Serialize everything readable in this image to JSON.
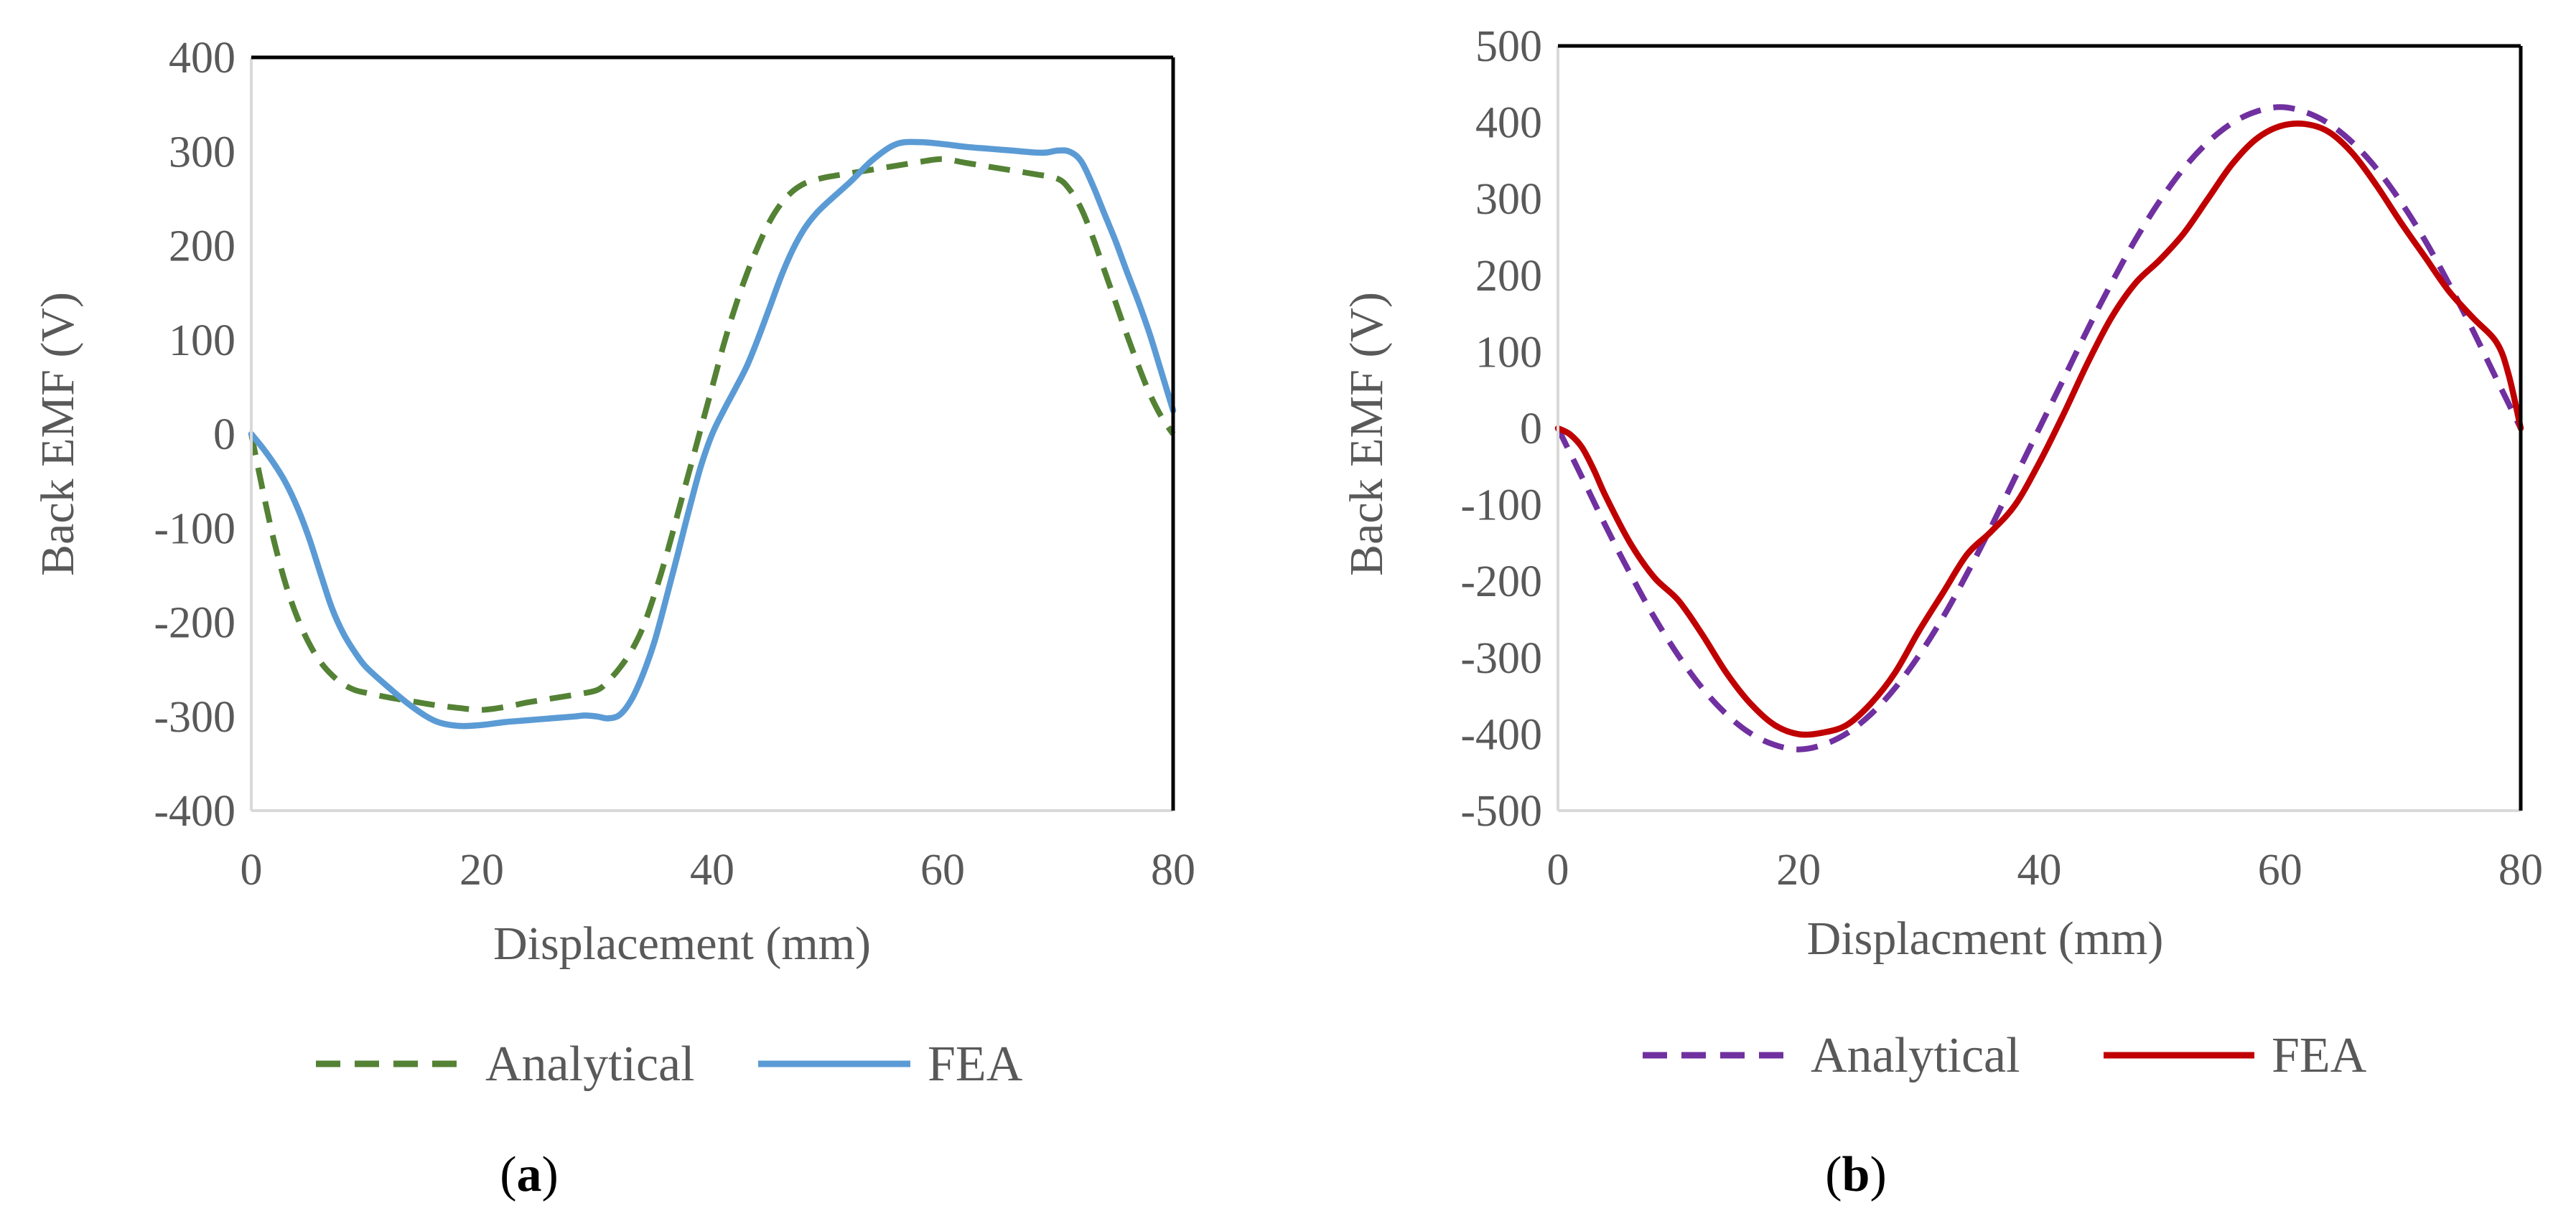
{
  "colors": {
    "a_analytical": "#548235",
    "a_fea": "#5B9BD5",
    "b_analytical": "#7030A0",
    "b_fea": "#C00000",
    "axis": "#000000",
    "text": "#595959"
  },
  "chart_data": [
    {
      "type": "line",
      "panel": "a",
      "panel_label": "a",
      "title": "",
      "xlabel": "Displacement (mm)",
      "ylabel": "Back EMF (V)",
      "xlim": [
        0,
        80
      ],
      "ylim": [
        -400,
        400
      ],
      "xticks": [
        "0",
        "20",
        "40",
        "60",
        "80"
      ],
      "xtick_values": [
        0,
        20,
        40,
        60,
        80
      ],
      "yticks": [
        "400",
        "300",
        "200",
        "100",
        "0",
        "-100",
        "-200",
        "-300",
        "-400"
      ],
      "ytick_values": [
        400,
        300,
        200,
        100,
        0,
        -100,
        -200,
        -300,
        -400
      ],
      "grid": false,
      "legend_position": "bottom",
      "series": [
        {
          "name": "Analytical",
          "style": "dashed",
          "color": "#548235",
          "x": [
            0,
            1,
            2,
            3,
            4,
            5,
            6,
            7,
            8,
            9,
            10,
            12,
            14,
            16,
            18,
            20,
            22,
            24,
            26,
            28,
            30,
            31,
            32,
            33,
            34,
            35,
            36,
            37,
            38,
            39,
            40,
            41,
            42,
            43,
            44,
            45,
            46,
            47,
            48,
            49,
            50,
            52,
            54,
            56,
            58,
            60,
            62,
            64,
            66,
            68,
            70,
            71,
            72,
            73,
            74,
            75,
            76,
            77,
            78,
            79,
            80
          ],
          "values": [
            0,
            -60,
            -115,
            -160,
            -195,
            -222,
            -242,
            -256,
            -266,
            -272,
            -275,
            -280,
            -284,
            -288,
            -291,
            -293,
            -290,
            -285,
            -281,
            -277,
            -272,
            -262,
            -248,
            -230,
            -205,
            -170,
            -130,
            -85,
            -40,
            5,
            50,
            95,
            135,
            170,
            200,
            226,
            245,
            258,
            266,
            270,
            273,
            277,
            281,
            285,
            289,
            292,
            288,
            284,
            280,
            276,
            271,
            260,
            240,
            210,
            175,
            140,
            105,
            72,
            42,
            18,
            0
          ]
        },
        {
          "name": "FEA",
          "style": "solid",
          "color": "#5B9BD5",
          "x": [
            0,
            1,
            2,
            3,
            4,
            5,
            6,
            7,
            8,
            9,
            10,
            12,
            14,
            16,
            18,
            20,
            22,
            24,
            26,
            28,
            29,
            30,
            31,
            32,
            33,
            34,
            35,
            36,
            37,
            38,
            39,
            40,
            41,
            42,
            43,
            44,
            45,
            46,
            47,
            48,
            49,
            50,
            52,
            54,
            56,
            58,
            60,
            62,
            64,
            66,
            68,
            69,
            70,
            71,
            72,
            73,
            74,
            75,
            76,
            77,
            78,
            79,
            80
          ],
          "values": [
            0,
            -15,
            -32,
            -52,
            -78,
            -110,
            -148,
            -185,
            -212,
            -232,
            -248,
            -270,
            -290,
            -305,
            -310,
            -309,
            -306,
            -304,
            -302,
            -300,
            -299,
            -300,
            -302,
            -298,
            -282,
            -255,
            -220,
            -175,
            -128,
            -80,
            -35,
            0,
            25,
            48,
            72,
            102,
            135,
            168,
            196,
            218,
            234,
            246,
            268,
            292,
            308,
            310,
            308,
            305,
            303,
            301,
            299,
            299,
            301,
            300,
            290,
            265,
            235,
            205,
            172,
            140,
            105,
            65,
            25
          ]
        }
      ]
    },
    {
      "type": "line",
      "panel": "b",
      "panel_label": "b",
      "title": "",
      "xlabel": "Displacment (mm)",
      "ylabel": "Back EMF (V)",
      "xlim": [
        0,
        80
      ],
      "ylim": [
        -500,
        500
      ],
      "xticks": [
        "0",
        "20",
        "40",
        "60",
        "80"
      ],
      "xtick_values": [
        0,
        20,
        40,
        60,
        80
      ],
      "yticks": [
        "500",
        "400",
        "300",
        "200",
        "100",
        "0",
        "-100",
        "-200",
        "-300",
        "-400",
        "-500"
      ],
      "ytick_values": [
        500,
        400,
        300,
        200,
        100,
        0,
        -100,
        -200,
        -300,
        -400,
        -500
      ],
      "grid": false,
      "legend_position": "bottom",
      "series": [
        {
          "name": "Analytical",
          "style": "dashed",
          "color": "#7030A0",
          "x": [
            0,
            2,
            4,
            6,
            8,
            10,
            12,
            14,
            16,
            18,
            20,
            22,
            24,
            26,
            28,
            30,
            32,
            34,
            36,
            38,
            40,
            42,
            44,
            46,
            48,
            50,
            52,
            54,
            56,
            58,
            60,
            62,
            64,
            66,
            68,
            70,
            72,
            74,
            76,
            78,
            80
          ],
          "values": [
            0,
            -64,
            -129,
            -190,
            -247,
            -297,
            -340,
            -374,
            -399,
            -414,
            -420,
            -414,
            -399,
            -374,
            -340,
            -297,
            -247,
            -190,
            -129,
            -64,
            0,
            64,
            129,
            190,
            247,
            297,
            340,
            374,
            399,
            414,
            420,
            414,
            399,
            374,
            340,
            297,
            247,
            190,
            129,
            64,
            0
          ]
        },
        {
          "name": "FEA",
          "style": "solid",
          "color": "#C00000",
          "x": [
            0,
            1,
            2,
            3,
            4,
            6,
            8,
            10,
            12,
            14,
            16,
            18,
            20,
            22,
            24,
            26,
            28,
            30,
            32,
            34,
            36,
            38,
            40,
            42,
            44,
            46,
            48,
            50,
            52,
            54,
            56,
            58,
            60,
            62,
            64,
            66,
            68,
            70,
            72,
            74,
            76,
            78,
            79,
            80
          ],
          "values": [
            0,
            -8,
            -25,
            -55,
            -90,
            -150,
            -195,
            -225,
            -270,
            -320,
            -360,
            -388,
            -400,
            -398,
            -388,
            -360,
            -320,
            -265,
            -215,
            -165,
            -135,
            -100,
            -45,
            18,
            85,
            145,
            190,
            220,
            255,
            300,
            345,
            378,
            395,
            398,
            388,
            360,
            318,
            270,
            225,
            180,
            145,
            112,
            70,
            0
          ]
        }
      ]
    }
  ]
}
